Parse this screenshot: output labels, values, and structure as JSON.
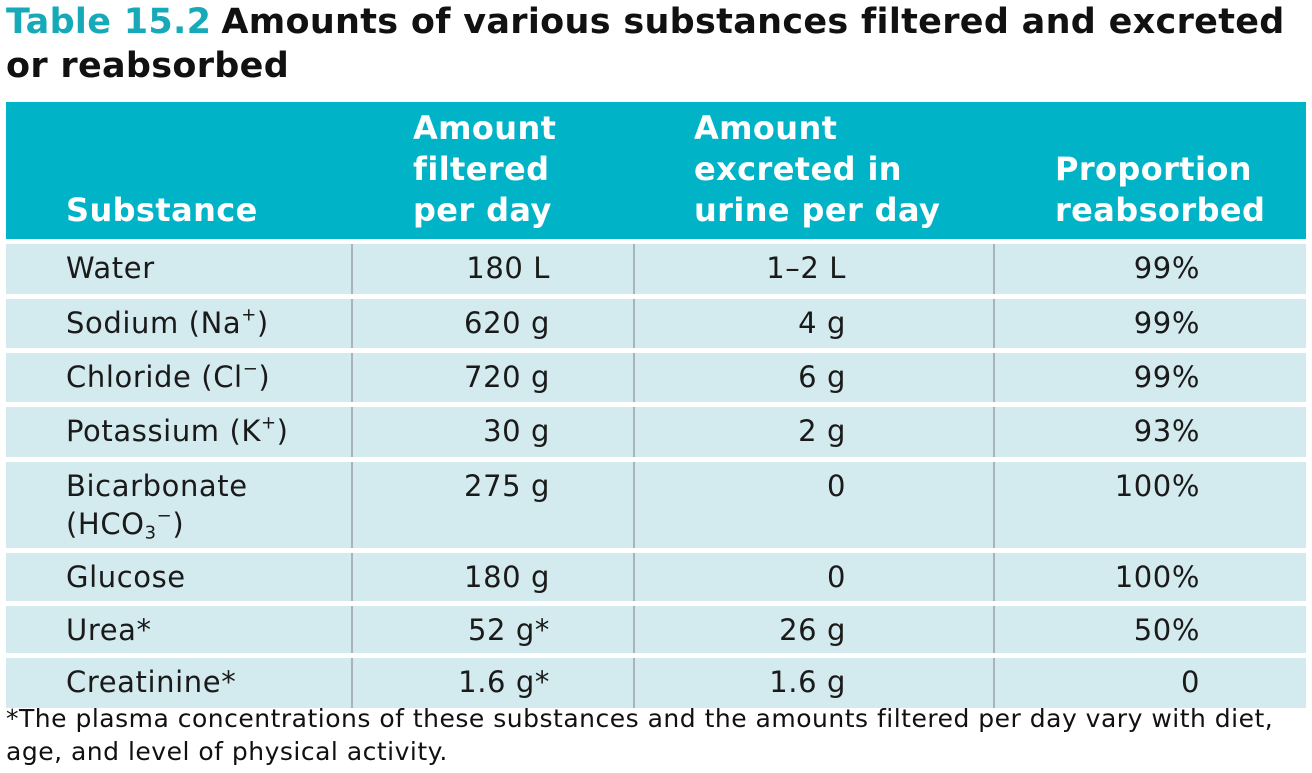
{
  "title": {
    "label": "Table 15.2",
    "text": "Amounts of various substances filtered and excreted or reabsorbed"
  },
  "headers": {
    "substance": "Substance",
    "filtered": [
      "Amount",
      "filtered",
      "per day"
    ],
    "excreted": [
      "Amount",
      "excreted in",
      "urine per day"
    ],
    "reabsorbed": [
      "Proportion",
      "reabsorbed"
    ]
  },
  "rows": [
    {
      "name": "Water",
      "filtered": "180 L",
      "excreted": "1–2 L",
      "reabsorbed": "99%"
    },
    {
      "name": "Sodium (Na",
      "sup": "+",
      "close": ")",
      "filtered": "620 g",
      "excreted": "4 g",
      "reabsorbed": "99%"
    },
    {
      "name": "Chloride (Cl",
      "sup": "−",
      "close": ")",
      "filtered": "720 g",
      "excreted": "6 g",
      "reabsorbed": "99%"
    },
    {
      "name": "Potassium (K",
      "sup": "+",
      "close": ")",
      "filtered": "30 g",
      "excreted": "2 g",
      "reabsorbed": "93%"
    },
    {
      "name": "Bicarbonate",
      "name2": "(HCO",
      "sub": "3",
      "sup": "−",
      "close": ")",
      "filtered": "275 g",
      "excreted": "0",
      "reabsorbed": "100%"
    },
    {
      "name": "Glucose",
      "filtered": "180 g",
      "excreted": "0",
      "reabsorbed": "100%"
    },
    {
      "name": "Urea*",
      "filtered": "52 g*",
      "excreted": "26 g",
      "reabsorbed": "50%"
    },
    {
      "name": "Creatinine*",
      "filtered": "1.6 g*",
      "excreted": "1.6 g",
      "reabsorbed": "0"
    }
  ],
  "footnote": "*The plasma concentrations of these substances and the amounts filtered per day vary with diet, age, and level of physical activity."
}
